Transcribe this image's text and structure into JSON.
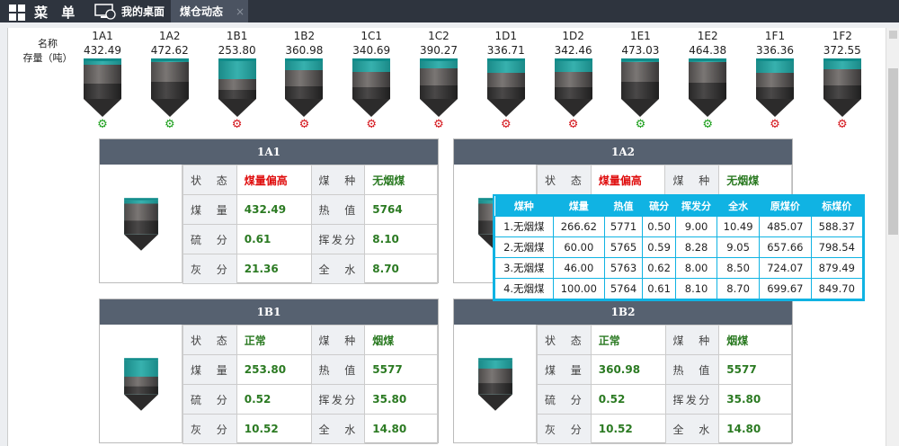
{
  "topbar": {
    "menu_label": "菜 单",
    "tabs": [
      {
        "label": "我的桌面",
        "icon": "desktop-icon"
      },
      {
        "label": "煤仓动态",
        "close": "×"
      }
    ]
  },
  "legend": {
    "name_label": "名称",
    "stock_label": "存量（吨）"
  },
  "colors": {
    "running": "#1a9e1a",
    "stopped": "#d4151b",
    "header": "#566170",
    "accent": "#10b3e3"
  },
  "silos": [
    {
      "name": "1A1",
      "value": "432.49",
      "gear": "green"
    },
    {
      "name": "1A2",
      "value": "472.62",
      "gear": "green"
    },
    {
      "name": "1B1",
      "value": "253.80",
      "gear": "red"
    },
    {
      "name": "1B2",
      "value": "360.98",
      "gear": "red"
    },
    {
      "name": "1C1",
      "value": "340.69",
      "gear": "red"
    },
    {
      "name": "1C2",
      "value": "390.27",
      "gear": "red"
    },
    {
      "name": "1D1",
      "value": "336.71",
      "gear": "red"
    },
    {
      "name": "1D2",
      "value": "342.46",
      "gear": "red"
    },
    {
      "name": "1E1",
      "value": "473.03",
      "gear": "green"
    },
    {
      "name": "1E2",
      "value": "464.38",
      "gear": "green"
    },
    {
      "name": "1F1",
      "value": "336.36",
      "gear": "red"
    },
    {
      "name": "1F2",
      "value": "372.55",
      "gear": "red"
    }
  ],
  "card_labels": {
    "status": "状 态",
    "type": "煤 种",
    "amount": "煤 量",
    "heat": "热 值",
    "sulfur": "硫 分",
    "volatile": "挥发分",
    "ash": "灰 分",
    "water": "全 水"
  },
  "cards": [
    {
      "title": "1A1",
      "status": "煤量偏高",
      "status_alert": true,
      "type": "无烟煤",
      "amount": "432.49",
      "heat": "5764",
      "sulfur": "0.61",
      "volatile": "8.10",
      "ash": "21.36",
      "water": "8.70"
    },
    {
      "title": "1A2",
      "status": "煤量偏高",
      "status_alert": true,
      "type": "无烟煤",
      "amount": "",
      "heat": "",
      "sulfur": "",
      "volatile": "",
      "ash": "",
      "water": ""
    },
    {
      "title": "1B1",
      "status": "正常",
      "status_alert": false,
      "type": "烟煤",
      "amount": "253.80",
      "heat": "5577",
      "sulfur": "0.52",
      "volatile": "35.80",
      "ash": "10.52",
      "water": "14.80"
    },
    {
      "title": "1B2",
      "status": "正常",
      "status_alert": false,
      "type": "烟煤",
      "amount": "360.98",
      "heat": "5577",
      "sulfur": "0.52",
      "volatile": "35.80",
      "ash": "10.52",
      "water": "14.80"
    }
  ],
  "popup": {
    "headers": [
      "煤种",
      "煤量",
      "热值",
      "硫分",
      "挥发分",
      "全水",
      "原煤价",
      "标煤价"
    ],
    "rows": [
      [
        "1.无烟煤",
        "266.62",
        "5771",
        "0.50",
        "9.00",
        "10.49",
        "485.07",
        "588.37"
      ],
      [
        "2.无烟煤",
        "60.00",
        "5765",
        "0.59",
        "8.28",
        "9.05",
        "657.66",
        "798.54"
      ],
      [
        "3.无烟煤",
        "46.00",
        "5763",
        "0.62",
        "8.00",
        "8.50",
        "724.07",
        "879.49"
      ],
      [
        "4.无烟煤",
        "100.00",
        "5764",
        "0.61",
        "8.10",
        "8.70",
        "699.67",
        "849.70"
      ]
    ]
  }
}
